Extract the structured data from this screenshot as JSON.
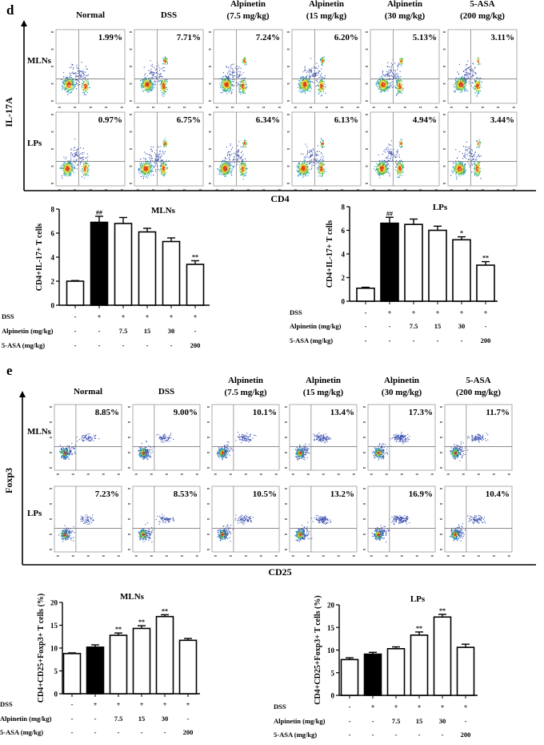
{
  "panels": [
    {
      "label": "d",
      "columns": [
        [
          "Normal"
        ],
        [
          "DSS"
        ],
        [
          "Alpinetin",
          "(7.5 mg/kg)"
        ],
        [
          "Alpinetin",
          "(15 mg/kg)"
        ],
        [
          "Alpinetin",
          "(30 mg/kg)"
        ],
        [
          "5-ASA",
          "(200 mg/kg)"
        ]
      ],
      "rows": [
        "MLNs",
        "LPs"
      ],
      "y_axis": "IL-17A",
      "x_axis": "CD4",
      "percents": [
        [
          "1.99%",
          "7.71%",
          "7.24%",
          "6.20%",
          "5.13%",
          "3.11%"
        ],
        [
          "0.97%",
          "6.75%",
          "6.34%",
          "6.13%",
          "4.94%",
          "3.44%"
        ]
      ],
      "tick_label": "10"
    },
    {
      "label": "e",
      "columns": [
        [
          "Normal"
        ],
        [
          "DSS"
        ],
        [
          "Alpinetin",
          "(7.5 mg/kg)"
        ],
        [
          "Alpinetin",
          "(15 mg/kg)"
        ],
        [
          "Alpinetin",
          "(30 mg/kg)"
        ],
        [
          "5-ASA",
          "(200 mg/kg)"
        ]
      ],
      "rows": [
        "MLNs",
        "LPs"
      ],
      "y_axis": "Foxp3",
      "x_axis": "CD25",
      "percents": [
        [
          "8.85%",
          "9.00%",
          "10.1%",
          "13.4%",
          "17.3%",
          "11.7%"
        ],
        [
          "7.23%",
          "8.53%",
          "10.5%",
          "13.2%",
          "16.9%",
          "10.4%"
        ]
      ],
      "tick_label": "10"
    }
  ],
  "treatment_table": {
    "row_labels": [
      "DSS",
      "Alpinetin (mg/kg)",
      "5-ASA (mg/kg)"
    ],
    "values": [
      [
        "-",
        "+",
        "+",
        "+",
        "+",
        "+"
      ],
      [
        "-",
        "-",
        "7.5",
        "15",
        "30",
        "-"
      ],
      [
        "-",
        "-",
        "-",
        "-",
        "-",
        "200"
      ]
    ]
  },
  "chart_data": [
    {
      "type": "bar",
      "title": "MLNs",
      "ylabel": "CD4+IL-17+ T cells",
      "ylim": [
        0,
        8
      ],
      "yticks": [
        "0",
        "2",
        "4",
        "6",
        "8"
      ],
      "values": [
        2.0,
        6.9,
        6.8,
        6.1,
        5.3,
        3.4
      ],
      "errors": [
        0.05,
        0.5,
        0.5,
        0.3,
        0.3,
        0.3
      ],
      "annotations": [
        "",
        "##",
        "",
        "",
        "",
        "**"
      ],
      "colors": [
        "#ffffff",
        "#000000",
        "#ffffff",
        "#ffffff",
        "#ffffff",
        "#ffffff"
      ]
    },
    {
      "type": "bar",
      "title": "LPs",
      "ylabel": "CD4+IL-17+ T cells",
      "ylim": [
        0,
        8
      ],
      "yticks": [
        "0",
        "2",
        "4",
        "6",
        "8"
      ],
      "values": [
        1.1,
        6.6,
        6.5,
        6.0,
        5.2,
        3.05
      ],
      "errors": [
        0.08,
        0.5,
        0.45,
        0.35,
        0.25,
        0.3
      ],
      "annotations": [
        "",
        "##",
        "",
        "",
        "*",
        "**"
      ],
      "colors": [
        "#ffffff",
        "#000000",
        "#ffffff",
        "#ffffff",
        "#ffffff",
        "#ffffff"
      ]
    },
    {
      "type": "bar",
      "title": "MLNs",
      "ylabel": "CD4+CD25+Foxp3+ T cells (%)",
      "ylim": [
        0,
        20
      ],
      "yticks": [
        "0",
        "5",
        "10",
        "15",
        "20"
      ],
      "values": [
        8.8,
        10.2,
        12.8,
        14.3,
        16.9,
        11.7
      ],
      "errors": [
        0.15,
        0.5,
        0.5,
        0.6,
        0.4,
        0.4
      ],
      "annotations": [
        "",
        "",
        "**",
        "**",
        "**",
        ""
      ],
      "colors": [
        "#ffffff",
        "#000000",
        "#ffffff",
        "#ffffff",
        "#ffffff",
        "#ffffff"
      ]
    },
    {
      "type": "bar",
      "title": "LPs",
      "ylabel": "CD4+CD25+Foxp3+ T cells (%)",
      "ylim": [
        0,
        20
      ],
      "yticks": [
        "0",
        "5",
        "10",
        "15",
        "20"
      ],
      "values": [
        7.9,
        9.1,
        10.3,
        13.3,
        17.3,
        10.6
      ],
      "errors": [
        0.4,
        0.4,
        0.4,
        0.7,
        0.6,
        0.7
      ],
      "annotations": [
        "",
        "",
        "",
        "**",
        "**",
        ""
      ],
      "colors": [
        "#ffffff",
        "#000000",
        "#ffffff",
        "#ffffff",
        "#ffffff",
        "#ffffff"
      ]
    }
  ]
}
